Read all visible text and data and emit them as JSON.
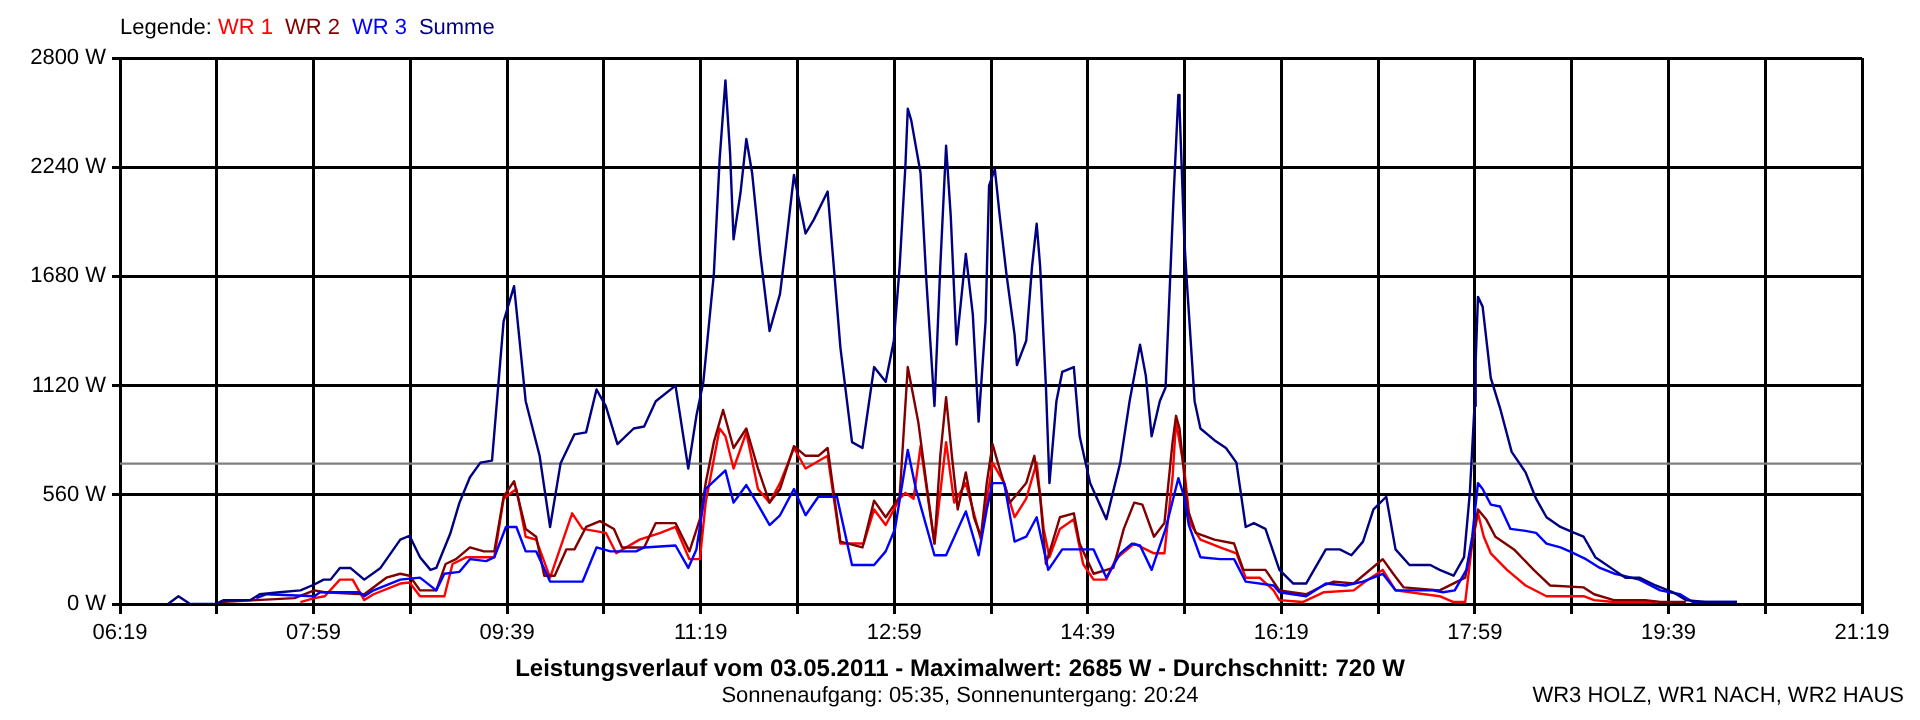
{
  "chart_data": {
    "type": "line",
    "title": "Leistungsverlauf vom 03.05.2011 - Maximalwert: 2685 W - Durchschnitt: 720 W",
    "subtitle": "Sonnenaufgang: 05:35, Sonnenuntergang: 20:24",
    "legend_title": "Legende:",
    "annotations": [
      "WR3 HOLZ, WR1 NACH, WR2 HAUS"
    ],
    "legend": "top left",
    "grid": true,
    "xlim": [
      6.3167,
      21.3167
    ],
    "xticks": [
      {
        "value": 6.3167,
        "label": "06:19"
      },
      {
        "value": 7.15,
        "label": null
      },
      {
        "value": 7.9833,
        "label": "07:59"
      },
      {
        "value": 8.8167,
        "label": null
      },
      {
        "value": 9.65,
        "label": "09:39"
      },
      {
        "value": 10.4833,
        "label": null
      },
      {
        "value": 11.3167,
        "label": "11:19"
      },
      {
        "value": 12.15,
        "label": null
      },
      {
        "value": 12.9833,
        "label": "12:59"
      },
      {
        "value": 13.8167,
        "label": null
      },
      {
        "value": 14.65,
        "label": "14:39"
      },
      {
        "value": 15.4833,
        "label": null
      },
      {
        "value": 16.3167,
        "label": "16:19"
      },
      {
        "value": 17.15,
        "label": null
      },
      {
        "value": 17.9833,
        "label": "17:59"
      },
      {
        "value": 18.8167,
        "label": null
      },
      {
        "value": 19.65,
        "label": "19:39"
      },
      {
        "value": 20.4833,
        "label": null
      },
      {
        "value": 21.3167,
        "label": "21:19"
      }
    ],
    "ylim": [
      0,
      2800
    ],
    "yticks": [
      {
        "value": 0,
        "label": "0 W"
      },
      {
        "value": 560,
        "label": "560 W"
      },
      {
        "value": 1120,
        "label": "1120 W"
      },
      {
        "value": 1680,
        "label": "1680 W"
      },
      {
        "value": 2240,
        "label": "2240 W"
      },
      {
        "value": 2800,
        "label": "2800 W"
      }
    ],
    "ref_lines": [
      {
        "axis": "y",
        "value": 720,
        "color": "#808080"
      }
    ],
    "series": [
      {
        "name": "WR 1",
        "color": "#ff0000",
        "x": [
          7.87,
          7.99,
          8.08,
          8.21,
          8.32,
          8.42,
          8.5,
          8.73,
          8.81,
          8.9,
          9.11,
          9.18,
          9.3,
          9.54,
          9.62,
          9.73,
          9.81,
          9.9,
          10.02,
          10.21,
          10.3,
          10.5,
          10.59,
          10.79,
          10.97,
          11.1,
          11.22,
          11.31,
          11.36,
          11.48,
          11.53,
          11.6,
          11.71,
          11.81,
          11.91,
          12.0,
          12.12,
          12.22,
          12.41,
          12.52,
          12.72,
          12.81,
          12.91,
          13.03,
          13.08,
          13.15,
          13.21,
          13.33,
          13.43,
          13.5,
          13.6,
          13.73,
          13.83,
          13.93,
          14.02,
          14.12,
          14.21,
          14.27,
          14.32,
          14.41,
          14.53,
          14.61,
          14.7,
          14.81,
          14.89,
          15.05,
          15.22,
          15.31,
          15.38,
          15.41,
          15.48,
          15.53,
          15.62,
          15.79,
          15.93,
          16.01,
          16.13,
          16.25,
          16.3,
          16.5,
          16.68,
          16.94,
          17.04,
          17.19,
          17.3,
          17.68,
          17.8,
          17.9,
          17.96,
          18.01,
          18.06,
          18.12,
          18.26,
          18.42,
          18.6,
          18.92,
          19.01,
          19.18,
          19.54
        ],
        "values": [
          10,
          30,
          40,
          125,
          125,
          20,
          50,
          105,
          110,
          40,
          40,
          205,
          240,
          240,
          540,
          590,
          345,
          330,
          135,
          465,
          385,
          365,
          260,
          330,
          365,
          395,
          230,
          230,
          520,
          900,
          860,
          695,
          880,
          590,
          520,
          620,
          800,
          695,
          760,
          310,
          310,
          485,
          405,
          540,
          570,
          540,
          810,
          310,
          830,
          520,
          620,
          330,
          725,
          620,
          445,
          540,
          725,
          385,
          240,
          385,
          435,
          205,
          125,
          125,
          230,
          310,
          260,
          260,
          650,
          935,
          695,
          415,
          330,
          290,
          260,
          135,
          135,
          70,
          20,
          10,
          60,
          70,
          115,
          175,
          70,
          40,
          10,
          10,
          310,
          465,
          345,
          260,
          175,
          95,
          40,
          40,
          20,
          10,
          10
        ]
      },
      {
        "name": "WR 2",
        "color": "#800000",
        "x": [
          7.18,
          7.49,
          7.82,
          7.99,
          8.08,
          8.42,
          8.61,
          8.73,
          8.81,
          8.9,
          9.04,
          9.12,
          9.21,
          9.33,
          9.45,
          9.54,
          9.62,
          9.71,
          9.81,
          9.9,
          9.97,
          10.06,
          10.16,
          10.23,
          10.33,
          10.45,
          10.57,
          10.64,
          10.83,
          10.93,
          11.1,
          11.22,
          11.31,
          11.36,
          11.43,
          11.51,
          11.6,
          11.71,
          11.81,
          11.91,
          12.0,
          12.12,
          12.22,
          12.33,
          12.41,
          12.52,
          12.71,
          12.81,
          12.91,
          13.03,
          13.1,
          13.19,
          13.26,
          13.33,
          13.38,
          13.43,
          13.48,
          13.53,
          13.6,
          13.67,
          13.73,
          13.78,
          13.83,
          13.89,
          13.98,
          14.12,
          14.19,
          14.24,
          14.29,
          14.41,
          14.53,
          14.58,
          14.7,
          14.87,
          14.96,
          15.05,
          15.12,
          15.22,
          15.31,
          15.38,
          15.41,
          15.44,
          15.51,
          15.58,
          15.74,
          15.91,
          15.99,
          16.18,
          16.3,
          16.53,
          16.68,
          16.77,
          16.94,
          17.04,
          17.19,
          17.28,
          17.37,
          17.68,
          17.9,
          17.97,
          18.01,
          18.08,
          18.16,
          18.32,
          18.49,
          18.63,
          18.92,
          19.01,
          19.18,
          19.45,
          19.58,
          19.8
        ],
        "values": [
          10,
          20,
          30,
          70,
          60,
          50,
          135,
          155,
          145,
          70,
          70,
          205,
          230,
          290,
          270,
          270,
          550,
          630,
          385,
          345,
          145,
          145,
          280,
          280,
          395,
          425,
          385,
          290,
          290,
          415,
          415,
          270,
          435,
          620,
          830,
          995,
          800,
          900,
          695,
          520,
          590,
          810,
          760,
          760,
          800,
          320,
          290,
          530,
          445,
          550,
          1215,
          935,
          620,
          310,
          760,
          1060,
          760,
          485,
          675,
          445,
          345,
          620,
          820,
          695,
          520,
          620,
          760,
          550,
          205,
          445,
          465,
          310,
          155,
          185,
          385,
          520,
          510,
          345,
          415,
          830,
          965,
          900,
          485,
          365,
          330,
          310,
          175,
          175,
          70,
          50,
          95,
          115,
          105,
          155,
          230,
          155,
          85,
          70,
          135,
          345,
          485,
          435,
          345,
          280,
          175,
          95,
          85,
          50,
          20,
          20,
          10,
          10
        ]
      },
      {
        "name": "WR 3",
        "color": "#0000ff",
        "x": [
          7.49,
          7.58,
          7.99,
          8.04,
          8.38,
          8.42,
          8.5,
          8.73,
          8.9,
          9.04,
          9.11,
          9.24,
          9.33,
          9.47,
          9.54,
          9.64,
          9.73,
          9.81,
          9.9,
          10.02,
          10.3,
          10.42,
          10.54,
          10.76,
          10.83,
          11.1,
          11.21,
          11.28,
          11.36,
          11.53,
          11.6,
          11.71,
          11.8,
          11.91,
          12.0,
          12.12,
          12.22,
          12.33,
          12.49,
          12.62,
          12.81,
          12.91,
          12.99,
          13.1,
          13.17,
          13.33,
          13.43,
          13.6,
          13.71,
          13.78,
          13.83,
          13.93,
          14.02,
          14.12,
          14.21,
          14.31,
          14.43,
          14.7,
          14.81,
          14.93,
          15.03,
          15.1,
          15.2,
          15.32,
          15.43,
          15.48,
          15.52,
          15.62,
          15.79,
          15.91,
          16.01,
          16.25,
          16.3,
          16.53,
          16.7,
          16.87,
          17.02,
          17.19,
          17.3,
          17.62,
          17.71,
          17.81,
          17.91,
          17.96,
          18.01,
          18.05,
          18.12,
          18.2,
          18.29,
          18.42,
          18.51,
          18.6,
          18.72,
          18.8,
          18.94,
          19.06,
          19.19,
          19.4,
          19.58,
          19.75,
          19.86,
          20.24
        ],
        "values": [
          30,
          50,
          40,
          60,
          60,
          40,
          70,
          125,
          135,
          70,
          155,
          165,
          230,
          220,
          240,
          395,
          395,
          270,
          270,
          115,
          115,
          290,
          270,
          270,
          290,
          300,
          185,
          280,
          590,
          685,
          520,
          610,
          520,
          405,
          455,
          590,
          455,
          550,
          550,
          200,
          200,
          270,
          385,
          790,
          590,
          250,
          250,
          475,
          250,
          485,
          620,
          620,
          320,
          345,
          445,
          175,
          280,
          280,
          135,
          260,
          310,
          300,
          175,
          385,
          645,
          550,
          405,
          240,
          230,
          230,
          115,
          95,
          60,
          40,
          105,
          95,
          115,
          155,
          70,
          70,
          60,
          70,
          175,
          345,
          620,
          590,
          510,
          500,
          385,
          375,
          365,
          310,
          290,
          270,
          230,
          185,
          155,
          125,
          70,
          50,
          10,
          10
        ]
      },
      {
        "name": "Summe",
        "color": "#000080",
        "x": [
          6.73,
          6.82,
          6.92,
          7.14,
          7.21,
          7.44,
          7.52,
          7.69,
          7.87,
          7.99,
          8.07,
          8.13,
          8.21,
          8.3,
          8.42,
          8.56,
          8.73,
          8.81,
          8.9,
          8.99,
          9.04,
          9.16,
          9.24,
          9.33,
          9.42,
          9.52,
          9.62,
          9.71,
          9.81,
          9.93,
          10.02,
          10.11,
          10.23,
          10.33,
          10.42,
          10.5,
          10.6,
          10.74,
          10.83,
          10.93,
          11.1,
          11.21,
          11.28,
          11.34,
          11.43,
          11.48,
          11.53,
          11.57,
          11.6,
          11.66,
          11.71,
          11.76,
          11.83,
          11.91,
          12.0,
          12.05,
          12.12,
          12.22,
          12.29,
          12.41,
          12.52,
          12.62,
          12.71,
          12.81,
          12.91,
          12.98,
          13.03,
          13.08,
          13.1,
          13.13,
          13.21,
          13.26,
          13.33,
          13.38,
          13.43,
          13.47,
          13.52,
          13.6,
          13.66,
          13.71,
          13.77,
          13.8,
          13.85,
          13.89,
          13.95,
          14.02,
          14.04,
          14.12,
          14.17,
          14.21,
          14.24,
          14.29,
          14.32,
          14.38,
          14.43,
          14.53,
          14.58,
          14.67,
          14.81,
          14.93,
          15.01,
          15.1,
          15.15,
          15.2,
          15.27,
          15.32,
          15.39,
          15.43,
          15.44,
          15.48,
          15.5,
          15.57,
          15.62,
          15.74,
          15.84,
          15.93,
          16.01,
          16.08,
          16.18,
          16.3,
          16.42,
          16.53,
          16.7,
          16.82,
          16.92,
          17.02,
          17.11,
          17.22,
          17.3,
          17.42,
          17.6,
          17.68,
          17.8,
          17.89,
          17.94,
          17.98,
          17.99,
          18.01,
          18.05,
          18.12,
          18.2,
          18.3,
          18.42,
          18.51,
          18.6,
          18.72,
          18.84,
          18.92,
          19.02,
          19.18,
          19.28,
          19.4,
          19.54,
          19.69,
          19.8,
          19.97,
          20.24
        ],
        "values": [
          0,
          40,
          0,
          0,
          20,
          20,
          50,
          60,
          70,
          100,
          125,
          125,
          185,
          185,
          125,
          185,
          330,
          350,
          240,
          175,
          185,
          360,
          520,
          650,
          725,
          735,
          1450,
          1630,
          1040,
          760,
          395,
          720,
          870,
          880,
          1100,
          1015,
          820,
          900,
          910,
          1040,
          1120,
          695,
          965,
          1140,
          1690,
          2280,
          2685,
          2310,
          1870,
          2110,
          2385,
          2210,
          1795,
          1400,
          1590,
          1835,
          2200,
          1900,
          1970,
          2115,
          1315,
          830,
          800,
          1215,
          1140,
          1350,
          1730,
          2250,
          2540,
          2480,
          2210,
          1660,
          1015,
          1730,
          2350,
          1990,
          1330,
          1795,
          1485,
          935,
          1450,
          2145,
          2230,
          2000,
          1690,
          1380,
          1225,
          1350,
          1730,
          1950,
          1730,
          1110,
          620,
          1040,
          1190,
          1215,
          860,
          620,
          435,
          725,
          1040,
          1330,
          1170,
          860,
          1040,
          1110,
          2105,
          2610,
          2550,
          1885,
          1680,
          1040,
          900,
          840,
          800,
          725,
          395,
          415,
          385,
          175,
          105,
          105,
          280,
          280,
          250,
          320,
          485,
          550,
          280,
          200,
          200,
          175,
          145,
          240,
          570,
          1015,
          1245,
          1575,
          1525,
          1160,
          1005,
          780,
          675,
          540,
          445,
          395,
          365,
          345,
          240,
          175,
          135,
          135,
          95,
          60,
          20,
          10,
          10
        ]
      }
    ]
  }
}
